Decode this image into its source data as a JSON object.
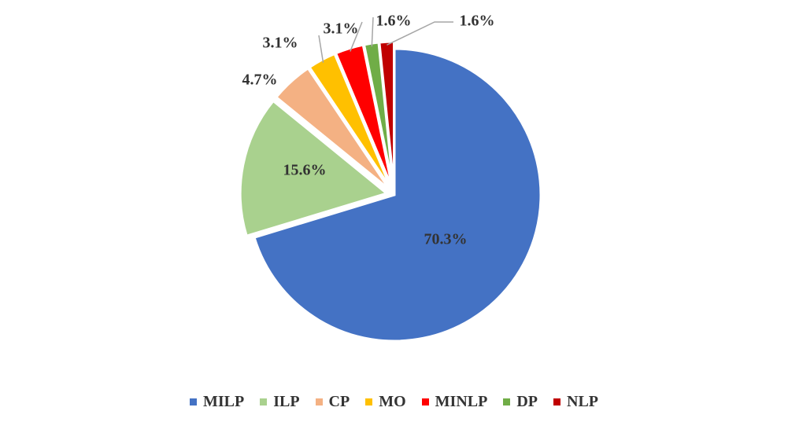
{
  "chart_data": {
    "type": "pie",
    "title": "",
    "slices": [
      {
        "label": "MILP",
        "value": 70.3,
        "display": "70.3%",
        "color": "#4472C4"
      },
      {
        "label": "ILP",
        "value": 15.6,
        "display": "15.6%",
        "color": "#A9D18E"
      },
      {
        "label": "CP",
        "value": 4.7,
        "display": "4.7%",
        "color": "#F4B183"
      },
      {
        "label": "MO",
        "value": 3.1,
        "display": "3.1%",
        "color": "#FFC000"
      },
      {
        "label": "MINLP",
        "value": 3.1,
        "display": "3.1%",
        "color": "#FF0000"
      },
      {
        "label": "DP",
        "value": 1.6,
        "display": "1.6%",
        "color": "#70AD47"
      },
      {
        "label": "NLP",
        "value": 1.6,
        "display": "1.6%",
        "color": "#C00000"
      }
    ],
    "legend": "bottom"
  }
}
